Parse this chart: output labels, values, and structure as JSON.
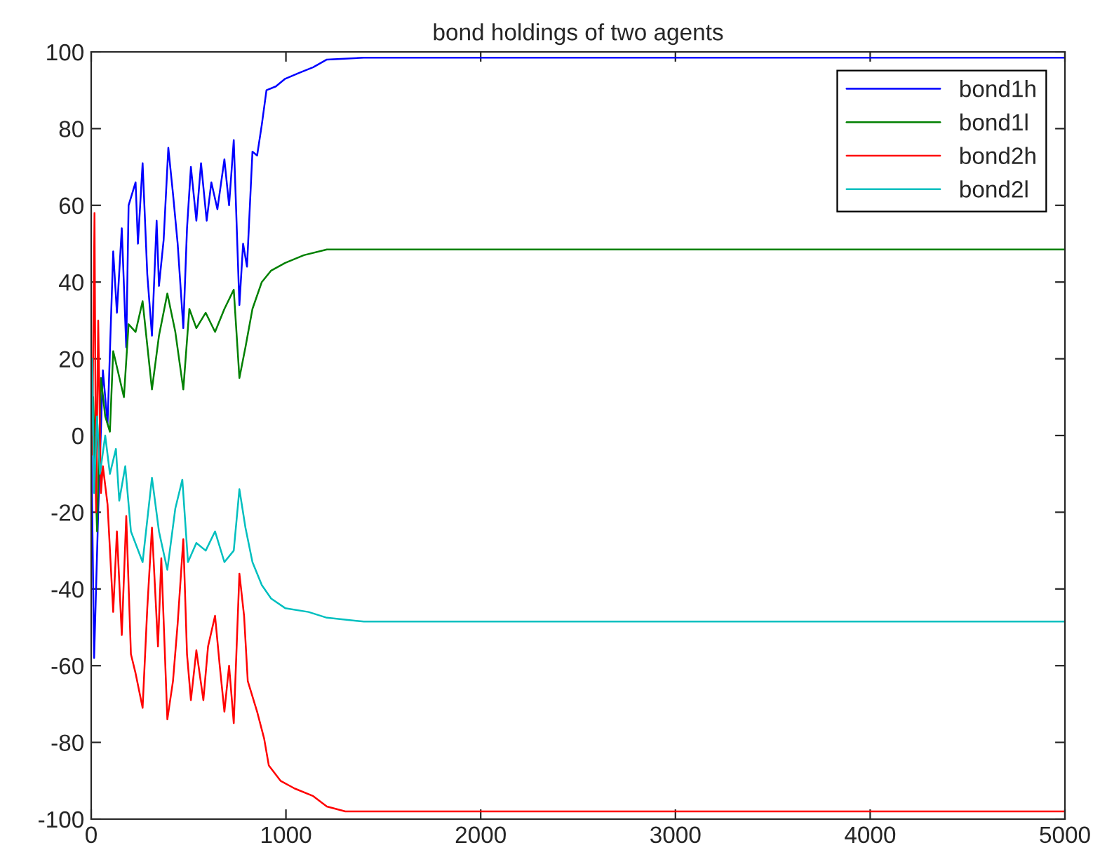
{
  "chart_data": {
    "type": "line",
    "title": "bond holdings of two agents",
    "xlim": [
      0,
      5000
    ],
    "xticks": [
      0,
      1000,
      2000,
      3000,
      4000,
      5000
    ],
    "ylim": [
      -100,
      100
    ],
    "yticks": [
      -100,
      -80,
      -60,
      -40,
      -20,
      0,
      20,
      40,
      60,
      80,
      100
    ],
    "grid": false,
    "legend": "top right",
    "marker": "none",
    "line_style": "solid",
    "series": [
      {
        "name": "bond1h",
        "color": "#0000ff",
        "x": [
          0,
          15,
          36,
          60,
          84,
          113,
          132,
          157,
          180,
          192,
          228,
          240,
          264,
          288,
          312,
          336,
          348,
          372,
          396,
          420,
          444,
          473,
          492,
          512,
          540,
          564,
          593,
          617,
          648,
          684,
          708,
          732,
          761,
          780,
          800,
          828,
          852,
          876,
          900,
          948,
          996,
          1066,
          1140,
          1210,
          1400,
          5000
        ],
        "values": [
          0,
          -58,
          -20,
          17,
          3,
          48,
          32,
          54,
          23,
          60,
          66,
          50,
          71,
          42,
          26,
          56,
          39,
          51,
          75,
          63,
          50,
          28,
          54,
          70,
          56,
          71,
          56,
          66,
          59,
          72,
          60,
          77,
          34,
          50,
          44,
          74,
          73,
          81,
          90,
          91,
          93,
          94.5,
          96,
          98,
          98.5,
          98.5
        ]
      },
      {
        "name": "bond1l",
        "color": "#008000",
        "x": [
          0,
          10,
          30,
          50,
          72,
          96,
          113,
          168,
          192,
          228,
          264,
          312,
          348,
          391,
          432,
          473,
          504,
          540,
          588,
          636,
          684,
          732,
          761,
          792,
          828,
          876,
          924,
          996,
          1092,
          1210,
          5000
        ],
        "values": [
          0,
          10,
          -25,
          15,
          5,
          1,
          22,
          10,
          29,
          27,
          35,
          12,
          26,
          37,
          27,
          12,
          33,
          28,
          32,
          27,
          33,
          38,
          15,
          23,
          33,
          40,
          43,
          45,
          47,
          48.5,
          48.5
        ]
      },
      {
        "name": "bond2h",
        "color": "#ff0000",
        "x": [
          0,
          5,
          17,
          25,
          36,
          50,
          60,
          84,
          113,
          132,
          157,
          180,
          204,
          228,
          264,
          288,
          312,
          343,
          360,
          391,
          420,
          444,
          473,
          492,
          512,
          540,
          576,
          600,
          636,
          660,
          684,
          708,
          732,
          761,
          785,
          804,
          852,
          888,
          912,
          972,
          1044,
          1140,
          1210,
          1305,
          5000
        ],
        "values": [
          0,
          -5,
          58,
          -20,
          30,
          -15,
          -8,
          -18,
          -46,
          -25,
          -52,
          -21,
          -57,
          -62,
          -71,
          -45,
          -24,
          -55,
          -32,
          -74,
          -64,
          -49,
          -27,
          -57,
          -69,
          -56,
          -69,
          -55,
          -47,
          -60,
          -72,
          -60,
          -75,
          -36,
          -47,
          -64,
          -72,
          -79,
          -86,
          -90,
          -92,
          -94,
          -96.7,
          -98,
          -98
        ]
      },
      {
        "name": "bond2l",
        "color": "#00bfbf",
        "x": [
          0,
          5,
          15,
          30,
          45,
          72,
          96,
          127,
          144,
          175,
          204,
          264,
          312,
          348,
          391,
          432,
          468,
          497,
          540,
          588,
          636,
          684,
          732,
          761,
          792,
          828,
          876,
          924,
          996,
          1116,
          1210,
          1400,
          5000
        ],
        "values": [
          0,
          20,
          -15,
          5,
          -10,
          0,
          -10,
          -3.5,
          -17,
          -8,
          -25,
          -33,
          -11,
          -25,
          -35,
          -19,
          -11.5,
          -33,
          -28,
          -30,
          -25,
          -33,
          -30,
          -14,
          -24,
          -33,
          -39,
          -42.5,
          -45,
          -46,
          -47.5,
          -48.5,
          -48.5
        ]
      }
    ]
  }
}
